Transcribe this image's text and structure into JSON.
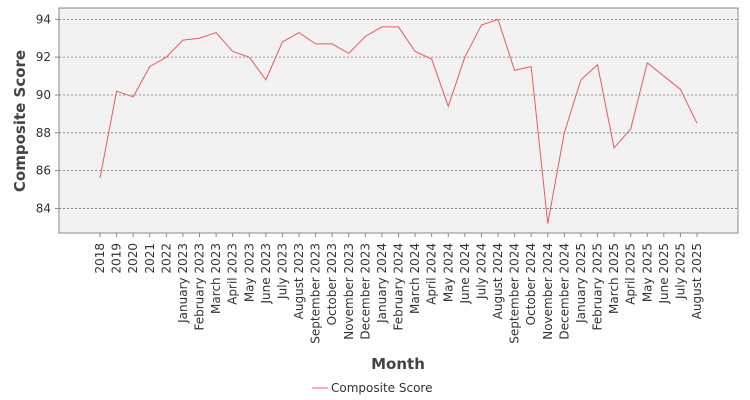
{
  "chart_data": {
    "type": "line",
    "title": "",
    "xlabel": "Month",
    "ylabel": "Composite Score",
    "categories": [
      "2018",
      "2019",
      "2020",
      "2021",
      "2022",
      "January 2023",
      "February 2023",
      "March 2023",
      "April 2023",
      "May 2023",
      "June 2023",
      "July 2023",
      "August 2023",
      "September 2023",
      "October 2023",
      "November 2023",
      "December 2023",
      "January 2024",
      "February 2024",
      "March 2024",
      "April 2024",
      "May 2024",
      "June 2024",
      "July 2024",
      "August 2024",
      "September 2024",
      "October 2024",
      "November 2024",
      "December 2024",
      "January 2025",
      "February 2025",
      "March 2025",
      "April 2025",
      "May 2025",
      "June 2025",
      "July 2025",
      "August 2025"
    ],
    "series": [
      {
        "name": "Composite Score",
        "color": "#f05a5a",
        "values": [
          85.6,
          90.2,
          89.9,
          91.5,
          92.0,
          92.9,
          93.0,
          93.3,
          92.3,
          92.0,
          90.8,
          92.8,
          93.3,
          92.7,
          92.7,
          92.2,
          93.1,
          93.6,
          93.6,
          92.3,
          91.9,
          89.4,
          92.0,
          93.7,
          94.0,
          91.3,
          91.5,
          83.2,
          88.0,
          90.8,
          91.6,
          87.2,
          88.2,
          91.7,
          91.0,
          90.3,
          88.5
        ]
      }
    ],
    "ylim": [
      82.7,
      94.6
    ],
    "yticks": [
      84,
      86,
      88,
      90,
      92,
      94
    ],
    "grid": true,
    "legend": "bottom-center"
  }
}
